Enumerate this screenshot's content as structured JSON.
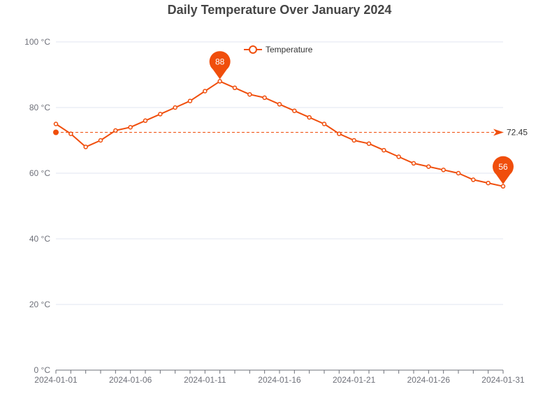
{
  "colors": {
    "series": "#f04e0c",
    "grid": "#e0e6f1",
    "axis": "#6e7079",
    "title": "#464646"
  },
  "chart_data": {
    "type": "line",
    "title": "Daily Temperature Over January 2024",
    "xlabel": "",
    "ylabel": "",
    "ylim": [
      0,
      100
    ],
    "y_ticks": [
      0,
      20,
      40,
      60,
      80,
      100
    ],
    "y_tick_labels": [
      "0 °C",
      "20 °C",
      "40 °C",
      "60 °C",
      "80 °C",
      "100 °C"
    ],
    "x_tick_labels": [
      "2024-01-01",
      "2024-01-06",
      "2024-01-11",
      "2024-01-16",
      "2024-01-21",
      "2024-01-26",
      "2024-01-31"
    ],
    "x": [
      "2024-01-01",
      "2024-01-02",
      "2024-01-03",
      "2024-01-04",
      "2024-01-05",
      "2024-01-06",
      "2024-01-07",
      "2024-01-08",
      "2024-01-09",
      "2024-01-10",
      "2024-01-11",
      "2024-01-12",
      "2024-01-13",
      "2024-01-14",
      "2024-01-15",
      "2024-01-16",
      "2024-01-17",
      "2024-01-18",
      "2024-01-19",
      "2024-01-20",
      "2024-01-21",
      "2024-01-22",
      "2024-01-23",
      "2024-01-24",
      "2024-01-25",
      "2024-01-26",
      "2024-01-27",
      "2024-01-28",
      "2024-01-29",
      "2024-01-30",
      "2024-01-31"
    ],
    "series": [
      {
        "name": "Temperature",
        "values": [
          75,
          72,
          68,
          70,
          73,
          74,
          76,
          78,
          80,
          82,
          85,
          88,
          86,
          84,
          83,
          81,
          79,
          77,
          75,
          72,
          70,
          69,
          67,
          65,
          63,
          62,
          61,
          60,
          58,
          57,
          56
        ]
      }
    ],
    "max_marker": {
      "label": "88",
      "value": 88,
      "x": "2024-01-12"
    },
    "min_marker": {
      "label": "56",
      "value": 56,
      "x": "2024-01-31"
    },
    "average_line": {
      "label": "72.45",
      "value": 72.45
    },
    "legend_position": "top-center",
    "grid": true
  }
}
